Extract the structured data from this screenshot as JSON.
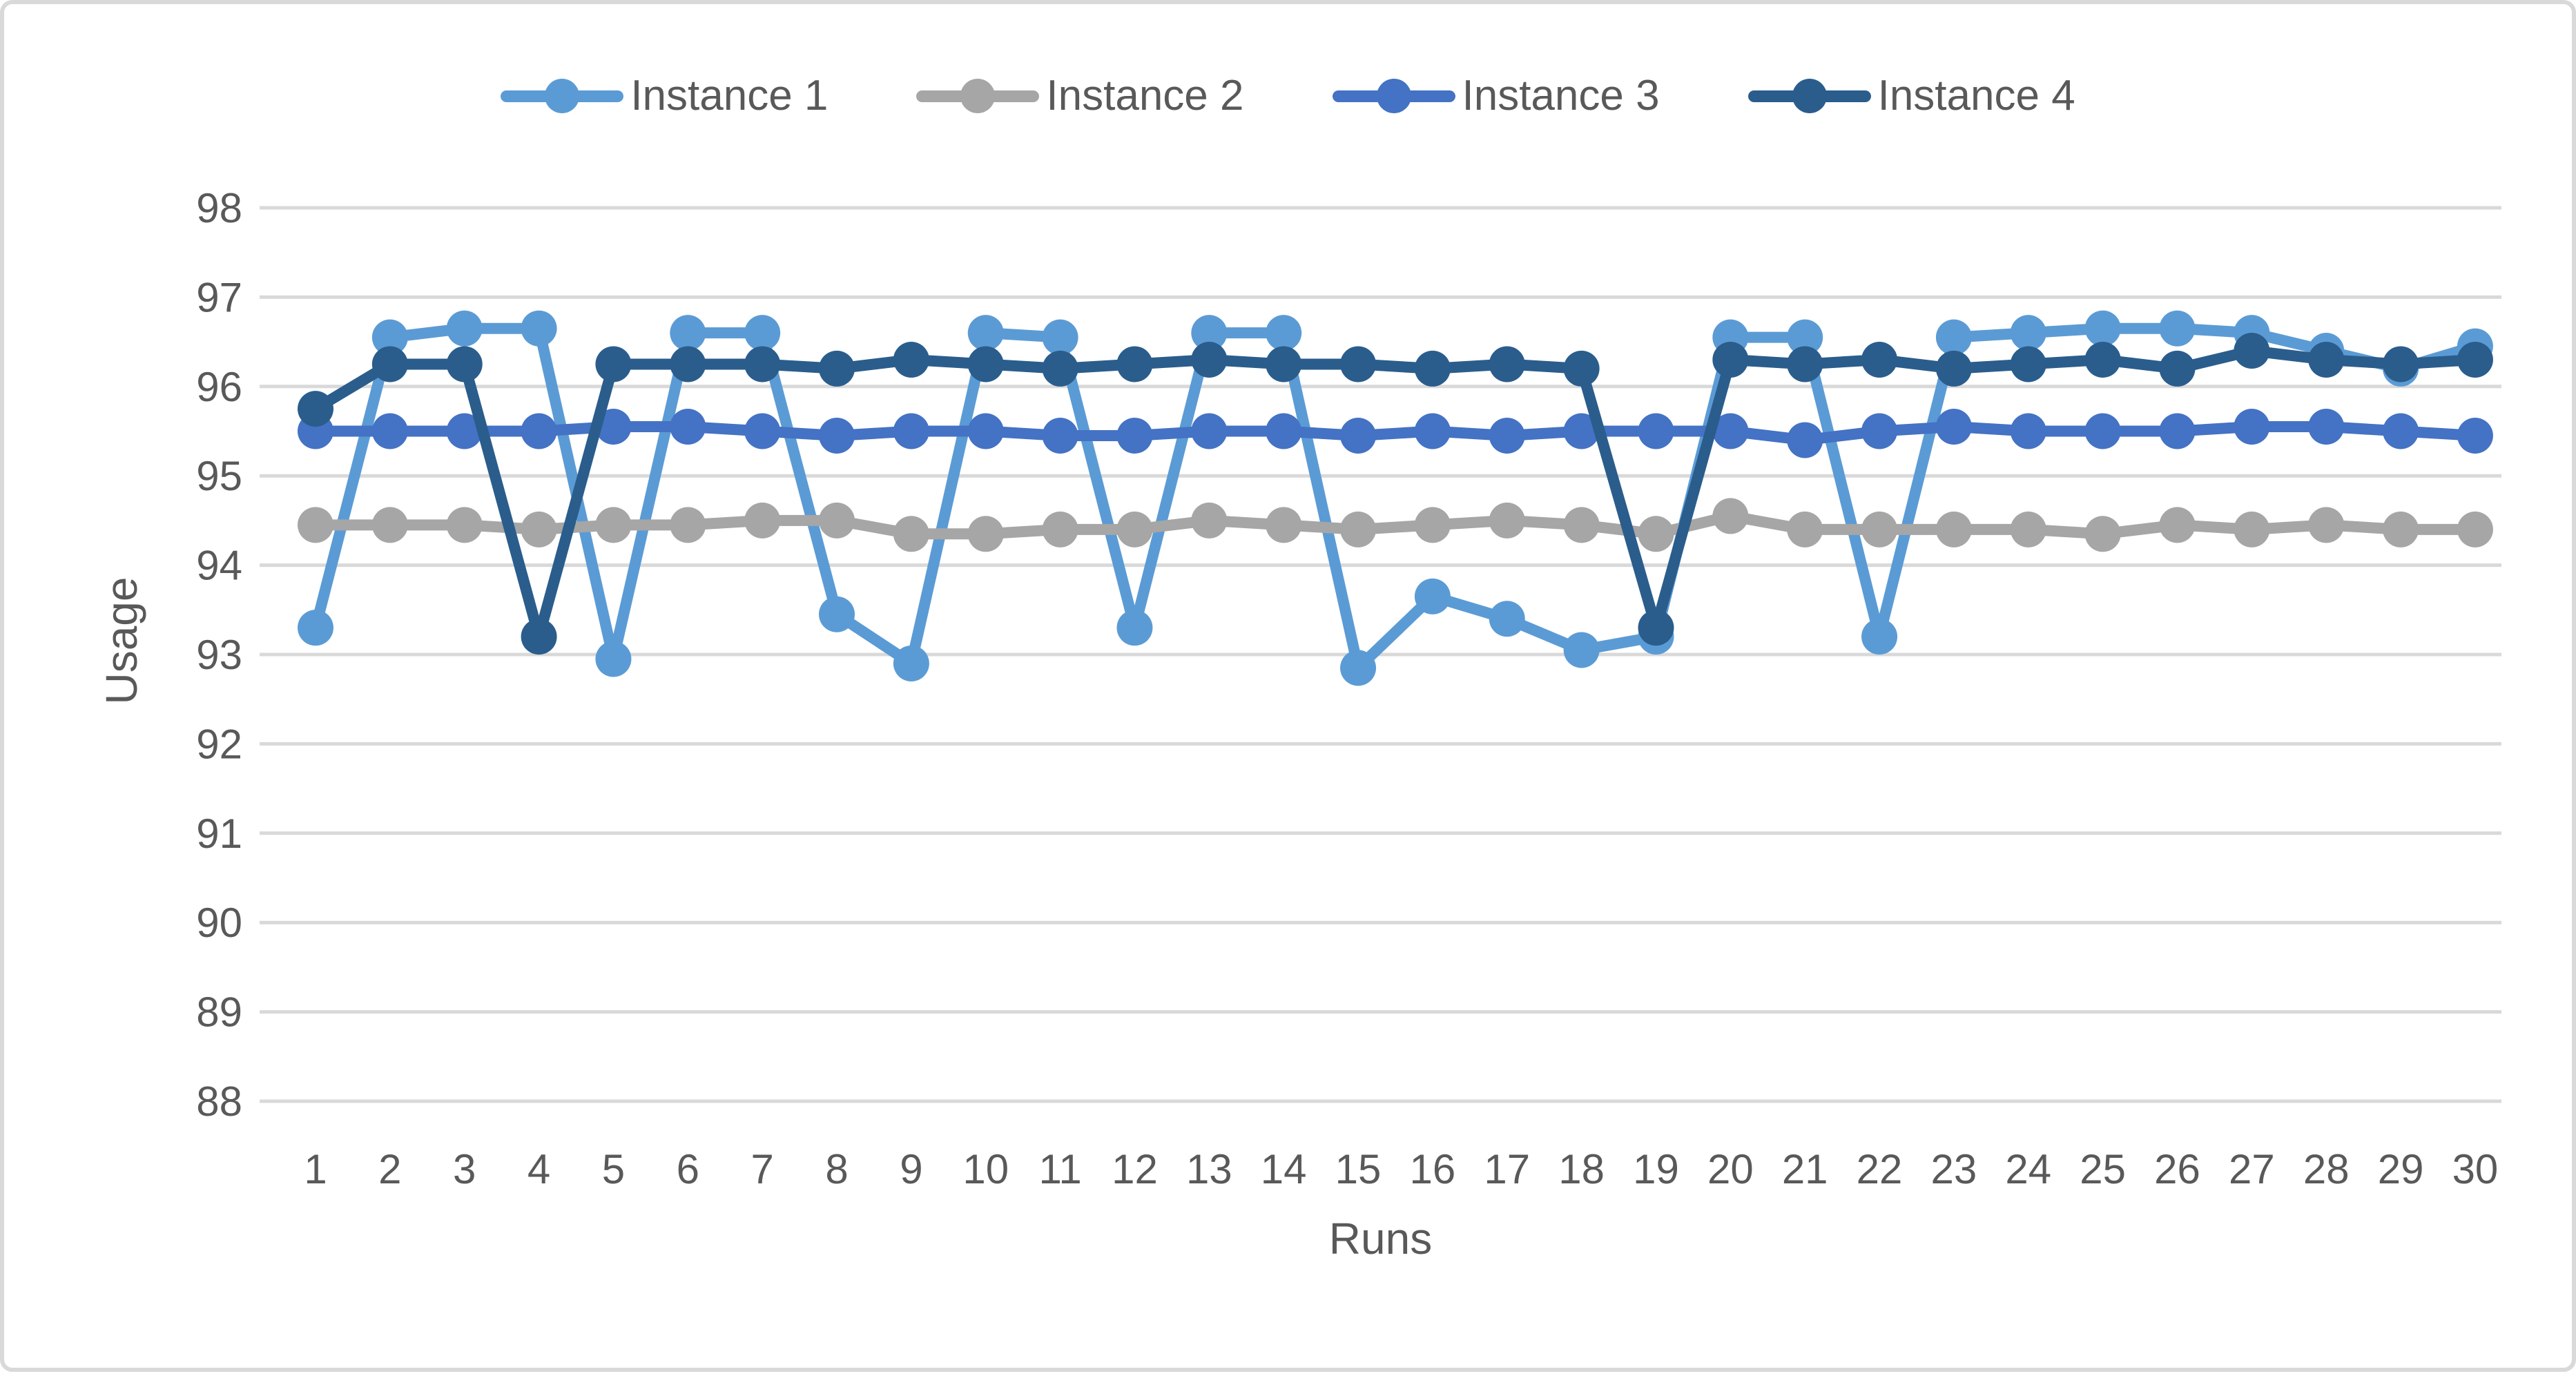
{
  "figure": {
    "background": "#FFFFFF",
    "border_color": "#D9D9D9"
  },
  "chart_data": {
    "type": "line",
    "title": "",
    "xlabel": "Runs",
    "ylabel": "Usage",
    "x": [
      1,
      2,
      3,
      4,
      5,
      6,
      7,
      8,
      9,
      10,
      11,
      12,
      13,
      14,
      15,
      16,
      17,
      18,
      19,
      20,
      21,
      22,
      23,
      24,
      25,
      26,
      27,
      28,
      29,
      30
    ],
    "ylim": [
      88,
      98
    ],
    "ytick_step": 1,
    "yticks": [
      88,
      89,
      90,
      91,
      92,
      93,
      94,
      95,
      96,
      97,
      98
    ],
    "grid": true,
    "legend_position": "top",
    "gridline_color": "#D9D9D9",
    "axis_text_color": "#595959",
    "series": [
      {
        "name": "Instance 1",
        "color": "#5B9BD5",
        "values": [
          93.3,
          96.55,
          96.65,
          96.65,
          92.95,
          96.6,
          96.6,
          93.45,
          92.9,
          96.6,
          96.55,
          93.3,
          96.6,
          96.6,
          92.85,
          93.65,
          93.4,
          93.05,
          93.2,
          96.55,
          96.55,
          93.2,
          96.55,
          96.6,
          96.65,
          96.65,
          96.6,
          96.4,
          96.2,
          96.45
        ]
      },
      {
        "name": "Instance 2",
        "color": "#A6A6A6",
        "values": [
          94.45,
          94.45,
          94.45,
          94.4,
          94.45,
          94.45,
          94.5,
          94.5,
          94.35,
          94.35,
          94.4,
          94.4,
          94.5,
          94.45,
          94.4,
          94.45,
          94.5,
          94.45,
          94.35,
          94.55,
          94.4,
          94.4,
          94.4,
          94.4,
          94.35,
          94.45,
          94.4,
          94.45,
          94.4,
          94.4
        ]
      },
      {
        "name": "Instance 3",
        "color": "#4472C4",
        "values": [
          95.5,
          95.5,
          95.5,
          95.5,
          95.55,
          95.55,
          95.5,
          95.45,
          95.5,
          95.5,
          95.45,
          95.45,
          95.5,
          95.5,
          95.45,
          95.5,
          95.45,
          95.5,
          95.5,
          95.5,
          95.4,
          95.5,
          95.55,
          95.5,
          95.5,
          95.5,
          95.55,
          95.55,
          95.5,
          95.45
        ]
      },
      {
        "name": "Instance 4",
        "color": "#2A5D8C",
        "values": [
          95.75,
          96.25,
          96.25,
          93.2,
          96.25,
          96.25,
          96.25,
          96.2,
          96.3,
          96.25,
          96.2,
          96.25,
          96.3,
          96.25,
          96.25,
          96.2,
          96.25,
          96.2,
          93.3,
          96.3,
          96.25,
          96.3,
          96.2,
          96.25,
          96.3,
          96.2,
          96.4,
          96.3,
          96.25,
          96.3
        ]
      }
    ]
  }
}
